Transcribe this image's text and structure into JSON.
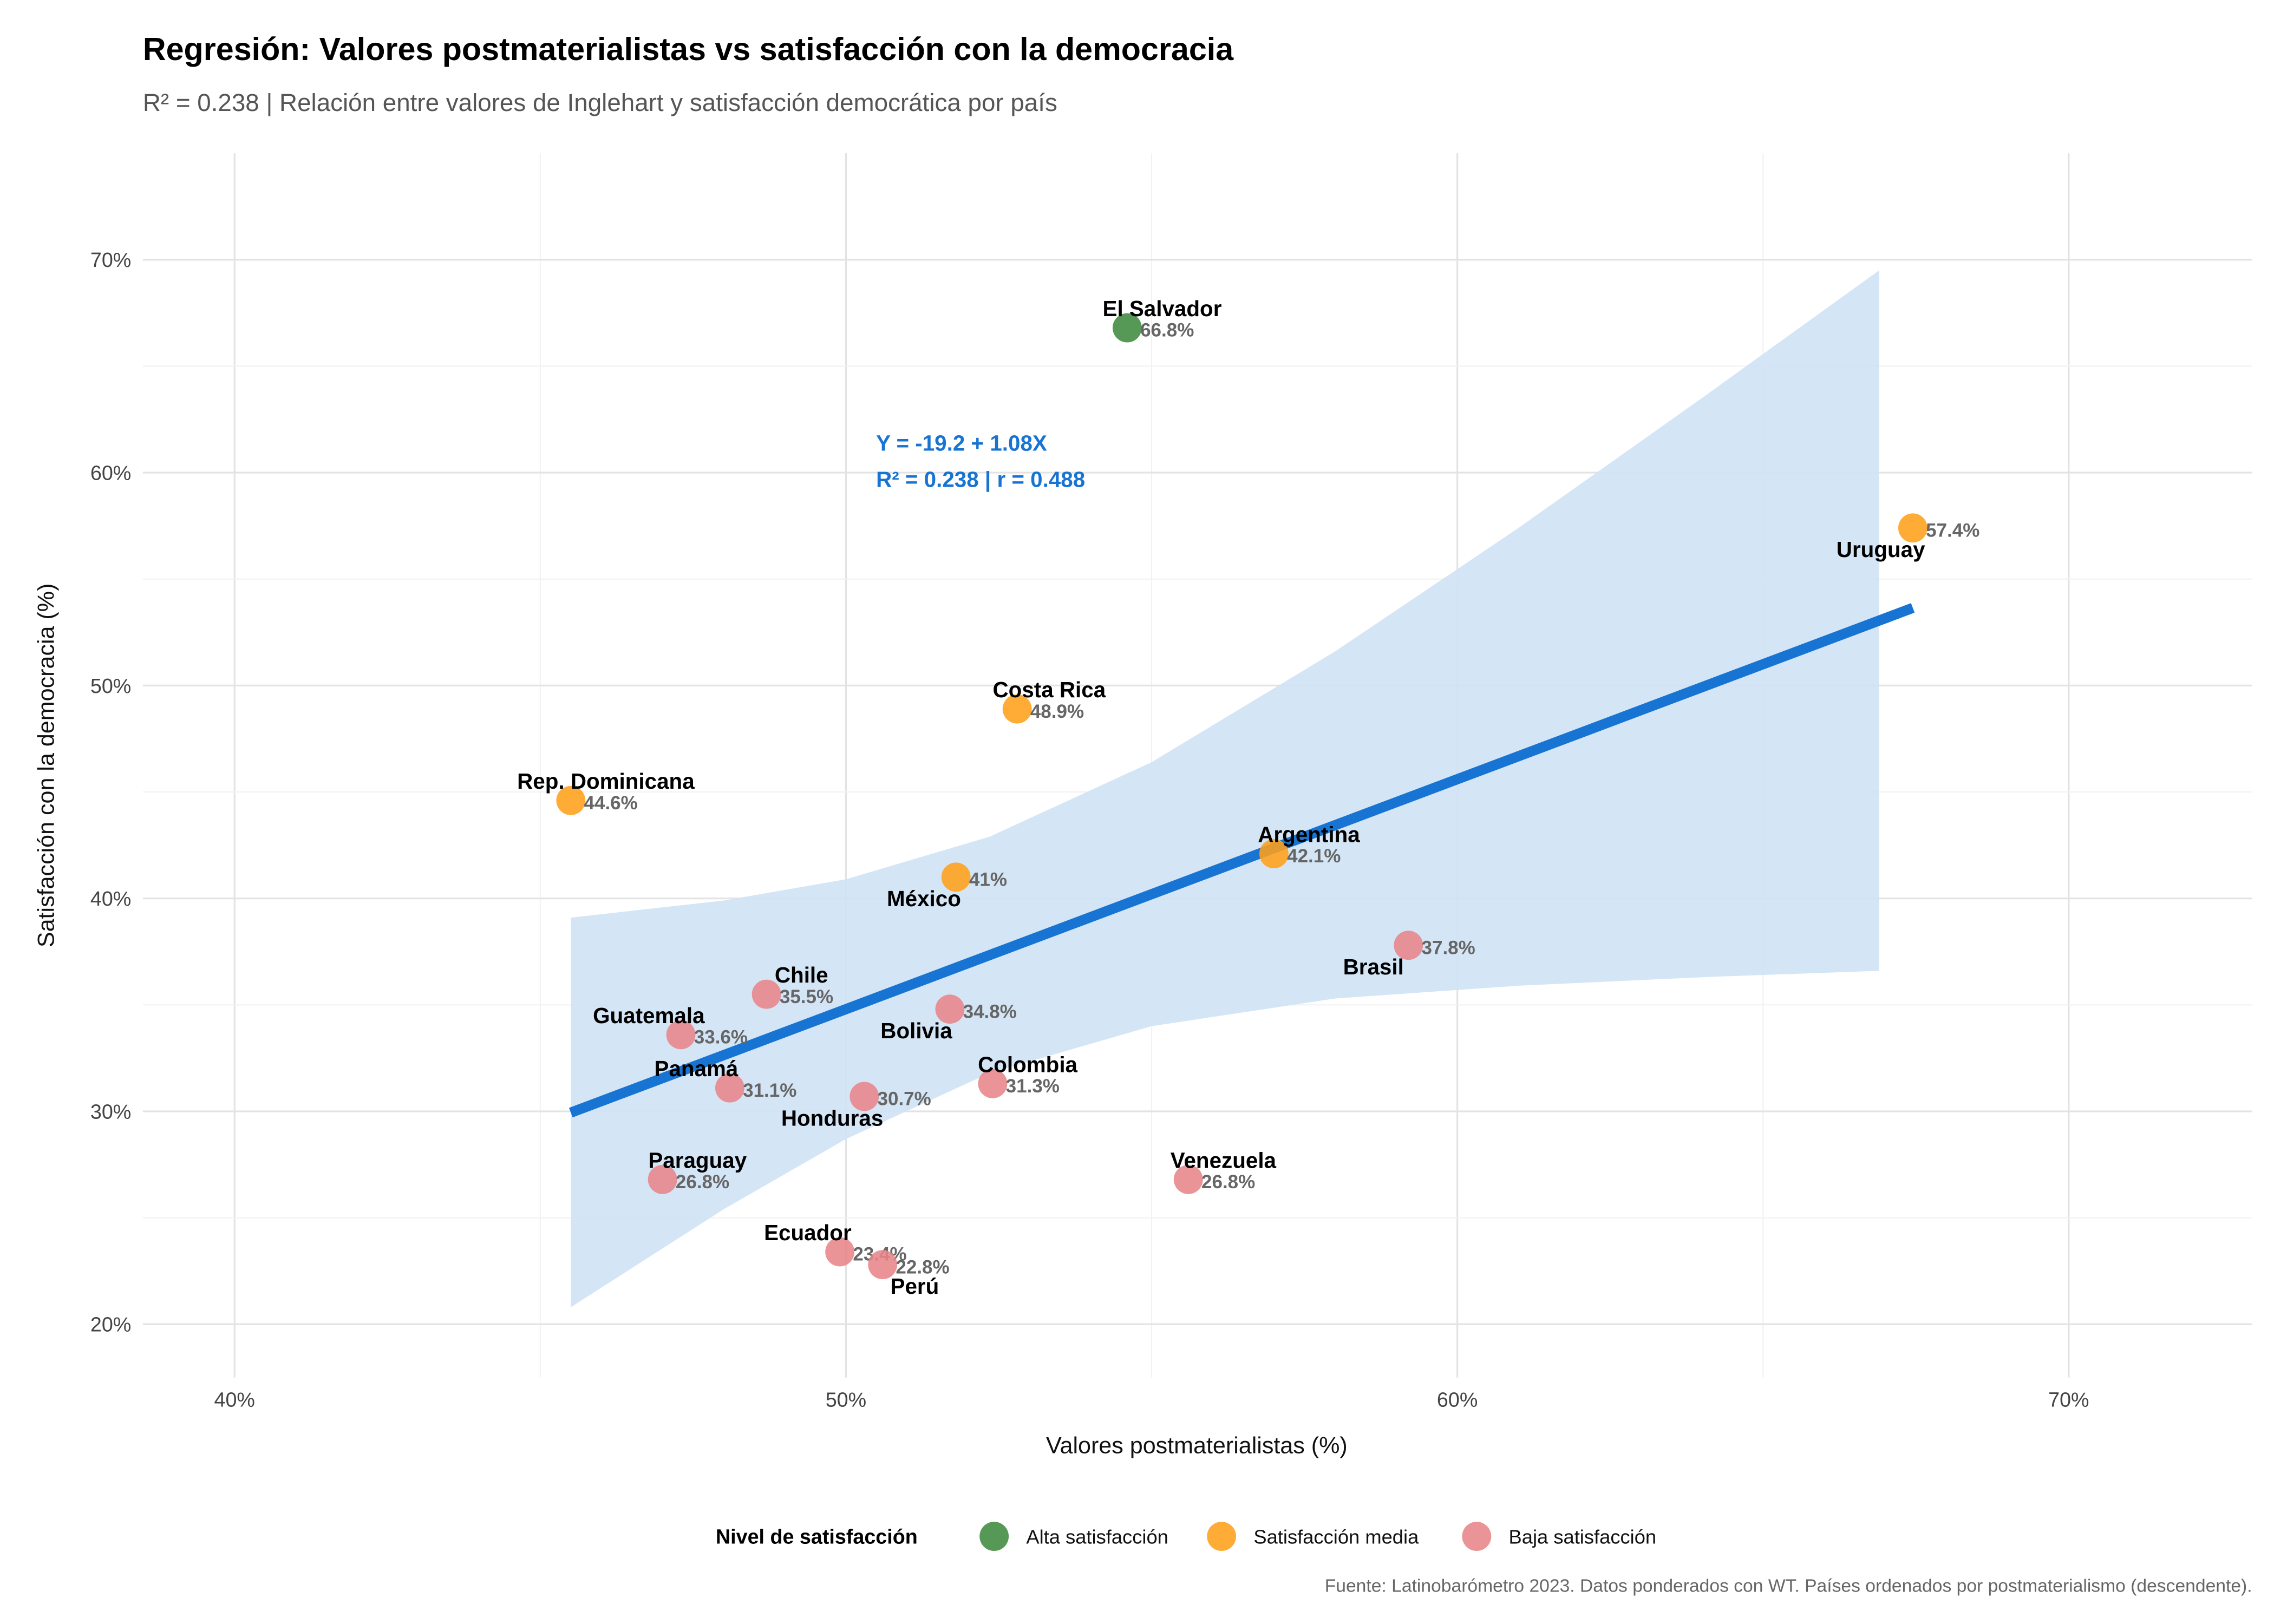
{
  "chart_data": {
    "type": "scatter",
    "title": "Regresión: Valores postmaterialistas vs satisfacción con la democracia",
    "subtitle": "R² = 0.238 | Relación entre valores de Inglehart y satisfacción democrática por país",
    "xlabel": "Valores postmaterialistas (%)",
    "ylabel": "Satisfacción con la democracia (%)",
    "caption": "Fuente: Latinobarómetro 2023. Datos ponderados con WT. Países ordenados por postmaterialismo (descendente).",
    "xlim": [
      38.5,
      73
    ],
    "ylim": [
      17.5,
      75
    ],
    "x_ticks": [
      40,
      50,
      60,
      70
    ],
    "x_tick_labels": [
      "40%",
      "50%",
      "60%",
      "70%"
    ],
    "y_ticks": [
      20,
      30,
      40,
      50,
      60,
      70
    ],
    "y_tick_labels": [
      "20%",
      "30%",
      "40%",
      "50%",
      "60%",
      "70%"
    ],
    "grid": true,
    "regression": {
      "intercept": -19.2,
      "slope": 1.08,
      "x_range": [
        45.5,
        67.45
      ],
      "equation_label": "Y = -19.2 + 1.08X",
      "stats_label": "R² = 0.238 | r = 0.488",
      "color": "#1874d2",
      "ci_color": "#cfe2f5",
      "ci_band": {
        "x": [
          45.5,
          48,
          50,
          52.35,
          55,
          58,
          61,
          64,
          66.9
        ],
        "lower": [
          20.8,
          25.4,
          28.7,
          31.8,
          34.0,
          35.3,
          35.9,
          36.3,
          36.6
        ],
        "upper": [
          39.1,
          39.9,
          40.9,
          42.9,
          46.4,
          51.6,
          57.4,
          63.5,
          69.5
        ]
      }
    },
    "legend": {
      "title": "Nivel de satisfacción",
      "placement": "bottom",
      "entries": [
        {
          "key": "alta",
          "label": "Alta satisfacción",
          "color": "#3f8a3f"
        },
        {
          "key": "media",
          "label": "Satisfacción media",
          "color": "#ffa01a"
        },
        {
          "key": "baja",
          "label": "Baja satisfacción",
          "color": "#e8858a"
        }
      ]
    },
    "points": [
      {
        "country": "El Salvador",
        "x": 54.6,
        "y": 66.8,
        "value_label": "66.8%",
        "level": "alta"
      },
      {
        "country": "Uruguay",
        "x": 67.45,
        "y": 57.4,
        "value_label": "57.4%",
        "level": "media"
      },
      {
        "country": "Costa Rica",
        "x": 52.8,
        "y": 48.9,
        "value_label": "48.9%",
        "level": "media"
      },
      {
        "country": "Rep. Dominicana",
        "x": 45.5,
        "y": 44.6,
        "value_label": "44.6%",
        "level": "media"
      },
      {
        "country": "Argentina",
        "x": 57.0,
        "y": 42.1,
        "value_label": "42.1%",
        "level": "media"
      },
      {
        "country": "México",
        "x": 51.8,
        "y": 41.0,
        "value_label": "41%",
        "level": "media"
      },
      {
        "country": "Brasil",
        "x": 59.2,
        "y": 37.8,
        "value_label": "37.8%",
        "level": "baja"
      },
      {
        "country": "Chile",
        "x": 48.7,
        "y": 35.5,
        "value_label": "35.5%",
        "level": "baja"
      },
      {
        "country": "Bolivia",
        "x": 51.7,
        "y": 34.8,
        "value_label": "34.8%",
        "level": "baja"
      },
      {
        "country": "Guatemala",
        "x": 47.3,
        "y": 33.6,
        "value_label": "33.6%",
        "level": "baja"
      },
      {
        "country": "Panamá",
        "x": 48.1,
        "y": 31.1,
        "value_label": "31.1%",
        "level": "baja"
      },
      {
        "country": "Honduras",
        "x": 50.3,
        "y": 30.7,
        "value_label": "30.7%",
        "level": "baja"
      },
      {
        "country": "Colombia",
        "x": 52.4,
        "y": 31.3,
        "value_label": "31.3%",
        "level": "baja"
      },
      {
        "country": "Paraguay",
        "x": 47.0,
        "y": 26.8,
        "value_label": "26.8%",
        "level": "baja"
      },
      {
        "country": "Venezuela",
        "x": 55.6,
        "y": 26.8,
        "value_label": "26.8%",
        "level": "baja"
      },
      {
        "country": "Ecuador",
        "x": 49.9,
        "y": 23.4,
        "value_label": "23.4%",
        "level": "baja"
      },
      {
        "country": "Perú",
        "x": 50.6,
        "y": 22.8,
        "value_label": "22.8%",
        "level": "baja"
      }
    ]
  }
}
